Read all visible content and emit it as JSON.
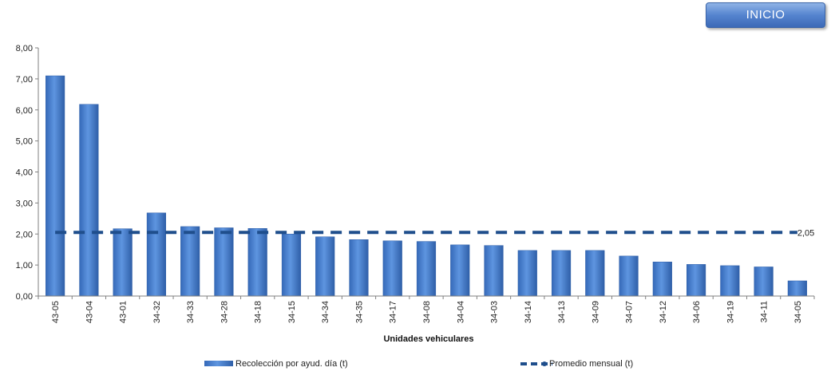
{
  "header": {
    "inicio_label": "INICIO"
  },
  "colors": {
    "bar": "#4f86d6",
    "bar_dark": "#2f5fa8",
    "average": "#1f4e8c"
  },
  "chart_data": {
    "type": "bar",
    "categories": [
      "43-05",
      "43-04",
      "43-01",
      "34-32",
      "34-33",
      "34-28",
      "34-18",
      "34-15",
      "34-34",
      "34-35",
      "34-17",
      "34-08",
      "34-04",
      "34-03",
      "34-14",
      "34-13",
      "34-09",
      "34-07",
      "34-12",
      "34-06",
      "34-19",
      "34-11",
      "34-05"
    ],
    "series": [
      {
        "name": "Recolección por ayud. día (t)",
        "type": "bar",
        "values": [
          7.1,
          6.18,
          2.17,
          2.68,
          2.24,
          2.2,
          2.18,
          2.0,
          1.91,
          1.82,
          1.78,
          1.76,
          1.65,
          1.63,
          1.47,
          1.47,
          1.47,
          1.29,
          1.1,
          1.02,
          0.98,
          0.94,
          0.49
        ]
      },
      {
        "name": "Promedio mensual (t)",
        "type": "line",
        "style": "dashed",
        "value": 2.05,
        "value_label": "2,05"
      }
    ],
    "xlabel": "Unidades vehiculares",
    "ylabel": "",
    "ylim": [
      0,
      8
    ],
    "ytick_labels": [
      "0,00",
      "1,00",
      "2,00",
      "3,00",
      "4,00",
      "5,00",
      "6,00",
      "7,00",
      "8,00"
    ],
    "grid": false,
    "legend_position": "bottom"
  }
}
